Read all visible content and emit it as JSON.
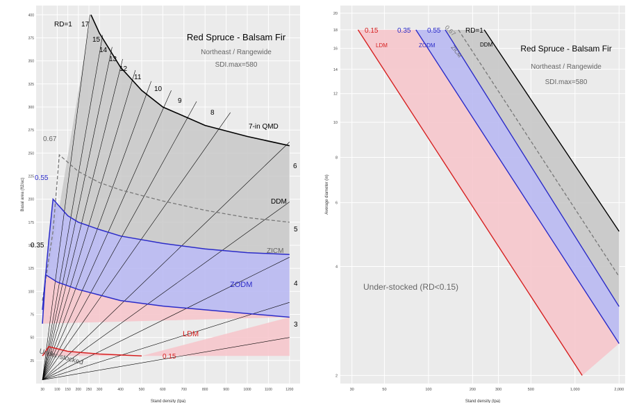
{
  "chart_data": [
    {
      "type": "line",
      "panel": "left",
      "title": "Red Spruce - Balsam Fir",
      "subtitle": "Northeast / Rangewide",
      "note": "SDI.max=580",
      "xlabel": "Stand density (tpa)",
      "ylabel": "Basal area (ft2/ac)",
      "xlim": [
        0,
        1250
      ],
      "ylim": [
        0,
        410
      ],
      "x_ticks": [
        30,
        100,
        150,
        200,
        250,
        300,
        400,
        500,
        600,
        700,
        800,
        900,
        1000,
        1100,
        1200
      ],
      "x_tick_labels": [
        "30",
        "100",
        "150",
        "200",
        "250",
        "300",
        "400",
        "500",
        "600",
        "700",
        "800",
        "900",
        "1000",
        "1100",
        "1200"
      ],
      "y_ticks": [
        25,
        50,
        75,
        100,
        125,
        150,
        175,
        200,
        225,
        250,
        275,
        300,
        325,
        350,
        375,
        400
      ],
      "y_tick_labels": [
        "25",
        "50",
        "75",
        "100",
        "125",
        "150",
        "175",
        "200",
        "225",
        "250",
        "275",
        "300",
        "325",
        "350",
        "375",
        "400"
      ],
      "grid": true,
      "rd_curves": [
        {
          "label": "RD=1",
          "values": [
            [
              260,
              400
            ],
            [
              300,
              380
            ],
            [
              400,
              343
            ],
            [
              500,
              318
            ],
            [
              600,
              300
            ],
            [
              800,
              280
            ],
            [
              1000,
              268
            ],
            [
              1200,
              258
            ]
          ]
        },
        {
          "label": "0.67",
          "values": [
            [
              30,
              90
            ],
            [
              80,
              165
            ],
            [
              110,
              248
            ],
            [
              200,
              230
            ],
            [
              300,
              218
            ],
            [
              400,
              210
            ],
            [
              600,
              198
            ],
            [
              800,
              188
            ],
            [
              1000,
              180
            ],
            [
              1200,
              175
            ]
          ]
        },
        {
          "label": "0.55",
          "values": [
            [
              30,
              80
            ],
            [
              60,
              155
            ],
            [
              80,
              200
            ],
            [
              150,
              182
            ],
            [
              200,
              175
            ],
            [
              300,
              167
            ],
            [
              400,
              160
            ],
            [
              600,
              152
            ],
            [
              800,
              146
            ],
            [
              1000,
              142
            ],
            [
              1200,
              140
            ]
          ]
        },
        {
          "label": "0.35",
          "values": [
            [
              30,
              65
            ],
            [
              45,
              118
            ],
            [
              100,
              110
            ],
            [
              200,
              102
            ],
            [
              300,
              96
            ],
            [
              400,
              90
            ],
            [
              600,
              84
            ],
            [
              800,
              80
            ],
            [
              1000,
              76
            ],
            [
              1200,
              72
            ]
          ]
        },
        {
          "label": "0.15",
          "values": [
            [
              30,
              30
            ],
            [
              60,
              40
            ],
            [
              150,
              35
            ],
            [
              300,
              32
            ],
            [
              500,
              30
            ]
          ]
        }
      ],
      "qmd_lines": [
        {
          "label": "17",
          "values": [
            [
              30,
              4
            ],
            [
              255,
              400
            ]
          ]
        },
        {
          "label": "15",
          "values": [
            [
              30,
              4
            ],
            [
              315,
              378
            ]
          ]
        },
        {
          "label": "14",
          "values": [
            [
              30,
              4
            ],
            [
              360,
              365
            ]
          ]
        },
        {
          "label": "13",
          "values": [
            [
              30,
              4
            ],
            [
              410,
              352
            ]
          ]
        },
        {
          "label": "12",
          "values": [
            [
              30,
              4
            ],
            [
              470,
              340
            ]
          ]
        },
        {
          "label": "11",
          "values": [
            [
              30,
              4
            ],
            [
              545,
              328
            ]
          ]
        },
        {
          "label": "10",
          "values": [
            [
              30,
              4
            ],
            [
              640,
              318
            ]
          ]
        },
        {
          "label": "9",
          "values": [
            [
              30,
              4
            ],
            [
              760,
              306
            ]
          ]
        },
        {
          "label": "8",
          "values": [
            [
              30,
              4
            ],
            [
              920,
              294
            ]
          ]
        },
        {
          "label": "7-in QMD",
          "values": [
            [
              30,
              4
            ],
            [
              1200,
              262
            ]
          ]
        },
        {
          "label": "6",
          "values": [
            [
              30,
              4
            ],
            [
              1200,
              197
            ]
          ]
        },
        {
          "label": "5",
          "values": [
            [
              30,
              4
            ],
            [
              1200,
              137
            ]
          ]
        },
        {
          "label": "4",
          "values": [
            [
              30,
              4
            ],
            [
              1200,
              88
            ]
          ]
        },
        {
          "label": "3",
          "values": [
            [
              30,
              4
            ],
            [
              1200,
              50
            ]
          ]
        }
      ],
      "zones": [
        "DDM",
        "ZICM",
        "ZODM",
        "LDM",
        "Under-stocked"
      ]
    },
    {
      "type": "line",
      "panel": "right",
      "title": "Red Spruce - Balsam Fir",
      "subtitle": "Northeast / Rangewide",
      "note": "SDI.max=580",
      "xlabel": "Stand density (tpa)",
      "ylabel": "Average diameter (in)",
      "xscale": "log",
      "yscale": "log",
      "xlim": [
        25,
        2200
      ],
      "ylim": [
        1.9,
        21
      ],
      "x_ticks": [
        30,
        50,
        100,
        200,
        300,
        500,
        1000,
        2000
      ],
      "x_tick_labels": [
        "30",
        "50",
        "100",
        "200",
        "300",
        "500",
        "1,000",
        "2,000"
      ],
      "y_ticks": [
        2,
        4,
        6,
        8,
        10,
        12,
        14,
        16,
        18,
        20
      ],
      "y_tick_labels": [
        "2",
        "4",
        "6",
        "8",
        "10",
        "12",
        "14",
        "16",
        "18",
        "20"
      ],
      "grid": true,
      "series": [
        {
          "name": "RD=1",
          "x": [
            240,
            2000
          ],
          "y": [
            18,
            5
          ]
        },
        {
          "name": "0.67",
          "x": [
            160,
            2000
          ],
          "y": [
            18,
            3.75
          ]
        },
        {
          "name": "0.55",
          "x": [
            130,
            2000
          ],
          "y": [
            18,
            3.1
          ]
        },
        {
          "name": "0.35",
          "x": [
            82,
            2000
          ],
          "y": [
            18,
            2.45
          ]
        },
        {
          "name": "0.15",
          "x": [
            33,
            1120
          ],
          "y": [
            18,
            2
          ]
        }
      ],
      "zones": [
        "DDM",
        "ZICM",
        "ZODM",
        "LDM",
        "Under-stocked (RD<0.15)"
      ]
    }
  ],
  "colors": {
    "rd1": "#000000",
    "rd067": "#777777",
    "rd055": "#2b2bc8",
    "rd035": "#2b2bc8",
    "rd015": "#d62020",
    "ddm_fill": "#c8c8c8",
    "zodm_fill": "#b9b9f2",
    "ldm_fill": "#f6c6cc",
    "panel_bg": "#ebebeb",
    "grid": "#ffffff",
    "qmd_line": "#000000",
    "label_red": "#d62020",
    "label_blue": "#2b2bc8"
  }
}
